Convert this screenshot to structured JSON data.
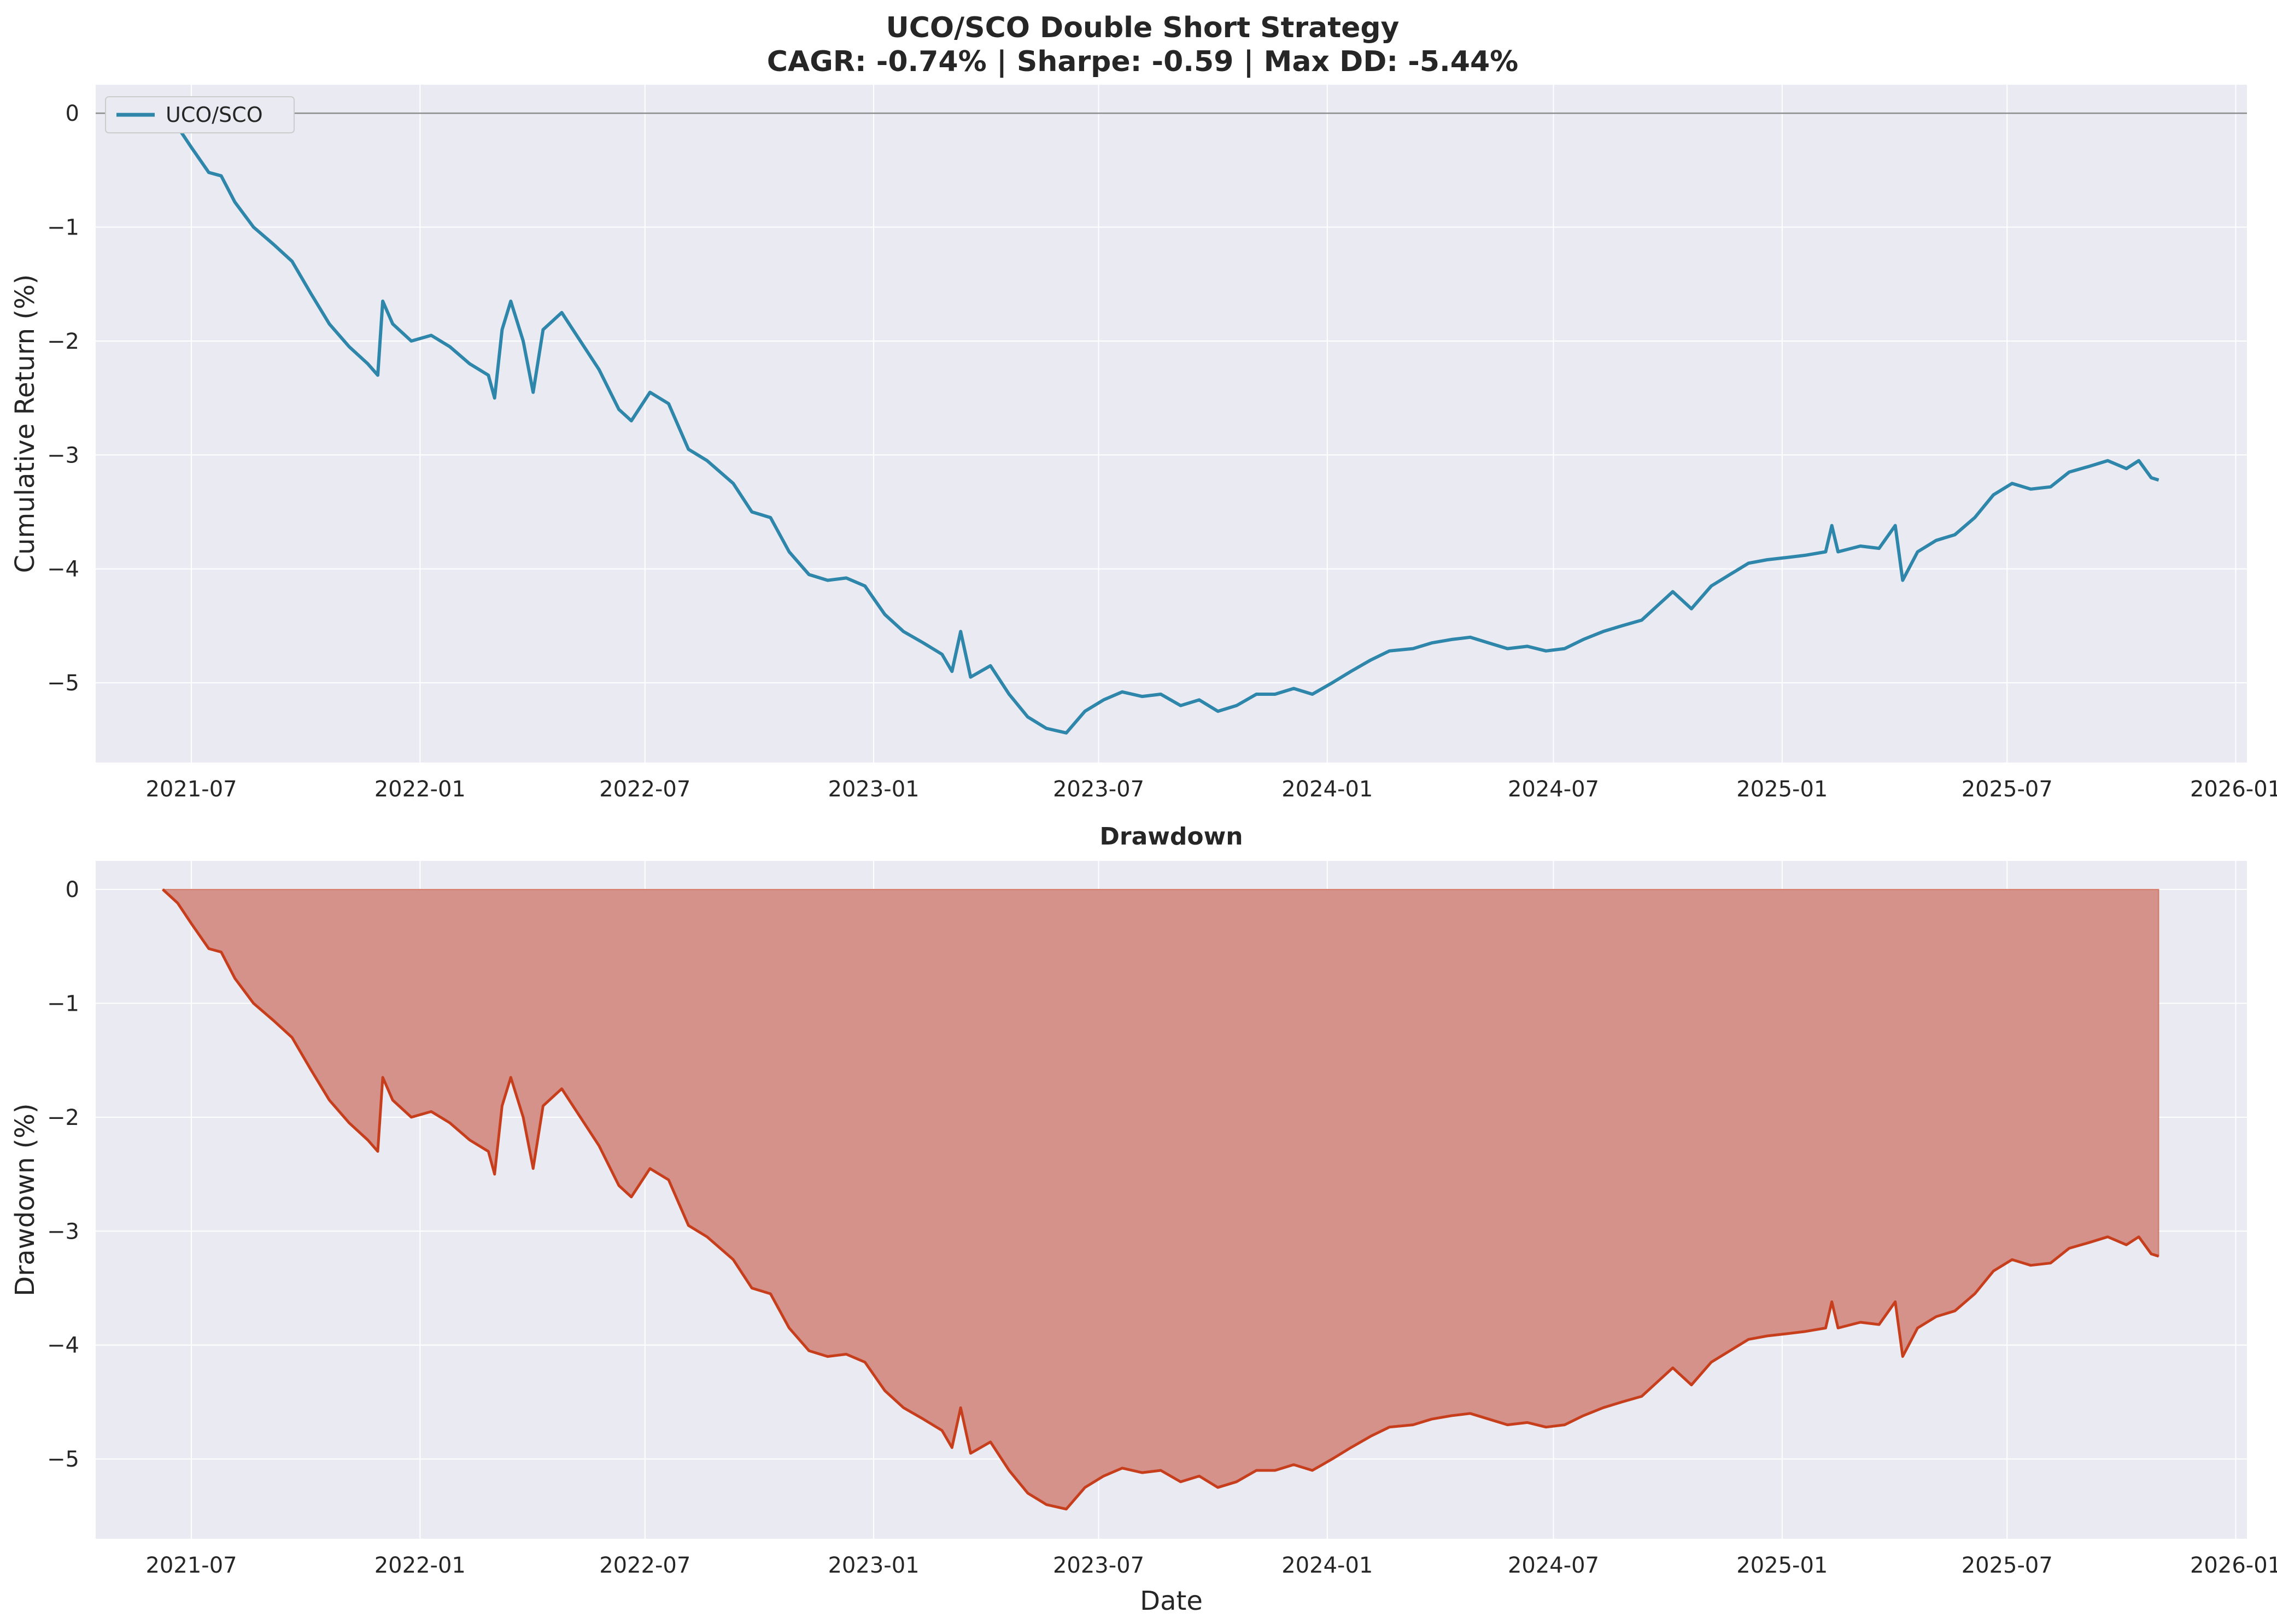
{
  "figure": {
    "title_line1": "UCO/SCO Double Short Strategy",
    "title_line2": "CAGR: -0.74% | Sharpe: -0.59 | Max DD: -5.44%"
  },
  "colors": {
    "plot_bg": "#eaeaf2",
    "grid": "#ffffff",
    "return_line": "#2e86ab",
    "drawdown_line": "#c73e1d",
    "drawdown_fill": "#d4928a",
    "zero_line": "#8c8c8c"
  },
  "x_ticks": [
    "2021-07",
    "2022-01",
    "2022-07",
    "2023-01",
    "2023-07",
    "2024-01",
    "2024-07",
    "2025-01",
    "2025-07",
    "2026-01"
  ],
  "chart_data": [
    {
      "type": "line",
      "title": "",
      "xlabel": "",
      "ylabel": "Cumulative Return (%)",
      "legend": [
        "UCO/SCO"
      ],
      "legend_position": "top-left",
      "xlim": [
        "2021-04-15",
        "2026-01-10"
      ],
      "ylim": [
        -5.7,
        0.25
      ],
      "y_ticks": [
        0,
        -1,
        -2,
        -3,
        -4,
        -5
      ],
      "grid": true,
      "reference_line_y": 0,
      "series": [
        {
          "name": "UCO/SCO",
          "points": [
            [
              "2021-06-08",
              0.0
            ],
            [
              "2021-06-20",
              -0.12
            ],
            [
              "2021-07-01",
              -0.3
            ],
            [
              "2021-07-15",
              -0.52
            ],
            [
              "2021-07-25",
              -0.55
            ],
            [
              "2021-08-05",
              -0.78
            ],
            [
              "2021-08-20",
              -1.0
            ],
            [
              "2021-09-05",
              -1.15
            ],
            [
              "2021-09-20",
              -1.3
            ],
            [
              "2021-10-05",
              -1.58
            ],
            [
              "2021-10-20",
              -1.85
            ],
            [
              "2021-11-05",
              -2.05
            ],
            [
              "2021-11-20",
              -2.2
            ],
            [
              "2021-11-28",
              -2.3
            ],
            [
              "2021-12-02",
              -1.65
            ],
            [
              "2021-12-10",
              -1.85
            ],
            [
              "2021-12-25",
              -2.0
            ],
            [
              "2022-01-10",
              -1.95
            ],
            [
              "2022-01-25",
              -2.05
            ],
            [
              "2022-02-10",
              -2.2
            ],
            [
              "2022-02-25",
              -2.3
            ],
            [
              "2022-03-02",
              -2.5
            ],
            [
              "2022-03-08",
              -1.9
            ],
            [
              "2022-03-15",
              -1.65
            ],
            [
              "2022-03-25",
              -2.0
            ],
            [
              "2022-04-02",
              -2.45
            ],
            [
              "2022-04-10",
              -1.9
            ],
            [
              "2022-04-25",
              -1.75
            ],
            [
              "2022-05-10",
              -2.0
            ],
            [
              "2022-05-25",
              -2.25
            ],
            [
              "2022-06-10",
              -2.6
            ],
            [
              "2022-06-20",
              -2.7
            ],
            [
              "2022-07-05",
              -2.45
            ],
            [
              "2022-07-20",
              -2.55
            ],
            [
              "2022-08-05",
              -2.95
            ],
            [
              "2022-08-20",
              -3.05
            ],
            [
              "2022-09-10",
              -3.25
            ],
            [
              "2022-09-25",
              -3.5
            ],
            [
              "2022-10-10",
              -3.55
            ],
            [
              "2022-10-25",
              -3.85
            ],
            [
              "2022-11-10",
              -4.05
            ],
            [
              "2022-11-25",
              -4.1
            ],
            [
              "2022-12-10",
              -4.08
            ],
            [
              "2022-12-25",
              -4.15
            ],
            [
              "2023-01-10",
              -4.4
            ],
            [
              "2023-01-25",
              -4.55
            ],
            [
              "2023-02-10",
              -4.65
            ],
            [
              "2023-02-25",
              -4.75
            ],
            [
              "2023-03-05",
              -4.9
            ],
            [
              "2023-03-12",
              -4.55
            ],
            [
              "2023-03-20",
              -4.95
            ],
            [
              "2023-04-05",
              -4.85
            ],
            [
              "2023-04-20",
              -5.1
            ],
            [
              "2023-05-05",
              -5.3
            ],
            [
              "2023-05-20",
              -5.4
            ],
            [
              "2023-06-05",
              -5.44
            ],
            [
              "2023-06-20",
              -5.25
            ],
            [
              "2023-07-05",
              -5.15
            ],
            [
              "2023-07-20",
              -5.08
            ],
            [
              "2023-08-05",
              -5.12
            ],
            [
              "2023-08-20",
              -5.1
            ],
            [
              "2023-09-05",
              -5.2
            ],
            [
              "2023-09-20",
              -5.15
            ],
            [
              "2023-10-05",
              -5.25
            ],
            [
              "2023-10-20",
              -5.2
            ],
            [
              "2023-11-05",
              -5.1
            ],
            [
              "2023-11-20",
              -5.1
            ],
            [
              "2023-12-05",
              -5.05
            ],
            [
              "2023-12-20",
              -5.1
            ],
            [
              "2024-01-05",
              -5.0
            ],
            [
              "2024-01-20",
              -4.9
            ],
            [
              "2024-02-05",
              -4.8
            ],
            [
              "2024-02-20",
              -4.72
            ],
            [
              "2024-03-10",
              -4.7
            ],
            [
              "2024-03-25",
              -4.65
            ],
            [
              "2024-04-10",
              -4.62
            ],
            [
              "2024-04-25",
              -4.6
            ],
            [
              "2024-05-10",
              -4.65
            ],
            [
              "2024-05-25",
              -4.7
            ],
            [
              "2024-06-10",
              -4.68
            ],
            [
              "2024-06-25",
              -4.72
            ],
            [
              "2024-07-10",
              -4.7
            ],
            [
              "2024-07-25",
              -4.62
            ],
            [
              "2024-08-10",
              -4.55
            ],
            [
              "2024-08-25",
              -4.5
            ],
            [
              "2024-09-10",
              -4.45
            ],
            [
              "2024-09-25",
              -4.3
            ],
            [
              "2024-10-05",
              -4.2
            ],
            [
              "2024-10-20",
              -4.35
            ],
            [
              "2024-11-05",
              -4.15
            ],
            [
              "2024-11-20",
              -4.05
            ],
            [
              "2024-12-05",
              -3.95
            ],
            [
              "2024-12-20",
              -3.92
            ],
            [
              "2025-01-05",
              -3.9
            ],
            [
              "2025-01-20",
              -3.88
            ],
            [
              "2025-02-05",
              -3.85
            ],
            [
              "2025-02-10",
              -3.62
            ],
            [
              "2025-02-15",
              -3.85
            ],
            [
              "2025-03-05",
              -3.8
            ],
            [
              "2025-03-20",
              -3.82
            ],
            [
              "2025-04-02",
              -3.62
            ],
            [
              "2025-04-08",
              -4.1
            ],
            [
              "2025-04-20",
              -3.85
            ],
            [
              "2025-05-05",
              -3.75
            ],
            [
              "2025-05-20",
              -3.7
            ],
            [
              "2025-06-05",
              -3.55
            ],
            [
              "2025-06-20",
              -3.35
            ],
            [
              "2025-07-05",
              -3.25
            ],
            [
              "2025-07-20",
              -3.3
            ],
            [
              "2025-08-05",
              -3.28
            ],
            [
              "2025-08-20",
              -3.15
            ],
            [
              "2025-09-05",
              -3.1
            ],
            [
              "2025-09-20",
              -3.05
            ],
            [
              "2025-10-05",
              -3.12
            ],
            [
              "2025-10-15",
              -3.05
            ],
            [
              "2025-10-25",
              -3.2
            ],
            [
              "2025-10-31",
              -3.22
            ]
          ]
        }
      ]
    },
    {
      "type": "area",
      "title": "Drawdown",
      "xlabel": "Date",
      "ylabel": "Drawdown (%)",
      "xlim": [
        "2021-04-15",
        "2026-01-10"
      ],
      "ylim": [
        -5.7,
        0.25
      ],
      "y_ticks": [
        0,
        -1,
        -2,
        -3,
        -4,
        -5
      ],
      "grid": true,
      "series": [
        {
          "name": "Drawdown",
          "same_points_as": "UCO/SCO"
        }
      ]
    }
  ]
}
